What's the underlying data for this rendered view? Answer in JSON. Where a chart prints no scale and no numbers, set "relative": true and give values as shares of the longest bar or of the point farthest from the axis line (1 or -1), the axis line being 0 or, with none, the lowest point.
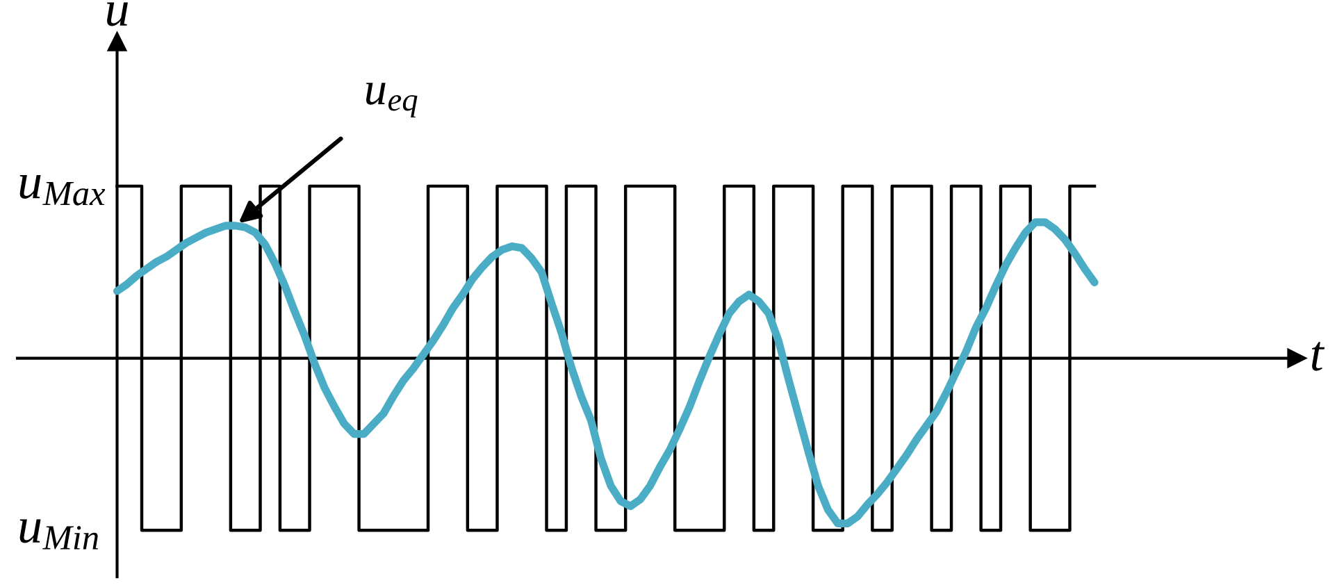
{
  "chart_data": {
    "type": "line",
    "xlabel": "t",
    "ylabel": "u",
    "categories": [
      null,
      null,
      null,
      null,
      null,
      null,
      null,
      null,
      null,
      null,
      null,
      null,
      null,
      null,
      null,
      null,
      null,
      null,
      null,
      null,
      null,
      null,
      null,
      null,
      null,
      null,
      null,
      null,
      null,
      null,
      null,
      null,
      null,
      null,
      null,
      null,
      null,
      null,
      null,
      null,
      null,
      null,
      null,
      null,
      null,
      null,
      null,
      null,
      null,
      null,
      null,
      null,
      null,
      null,
      null,
      null,
      null,
      null,
      null,
      null,
      null,
      null,
      null,
      null,
      null,
      null,
      null,
      null,
      null,
      null,
      null,
      null,
      null,
      null,
      null,
      null,
      null,
      null,
      null,
      null,
      null,
      null,
      null,
      null,
      null,
      null,
      null,
      null,
      null,
      null,
      null,
      null,
      null,
      null,
      null,
      null,
      null,
      null,
      null,
      null
    ],
    "relative": true,
    "series": [
      {
        "type": "step",
        "color": "#000000",
        "values": [
          1,
          1,
          1,
          -1,
          -1,
          -1,
          -1,
          1,
          1,
          1,
          1,
          1,
          -1,
          -1,
          -1,
          1,
          1,
          -1,
          -1,
          -1,
          1,
          1,
          1,
          1,
          1,
          -1,
          -1,
          -1,
          -1,
          -1,
          -1,
          -1,
          1,
          1,
          1,
          1,
          -1,
          -1,
          -1,
          1,
          1,
          1,
          1,
          1,
          -1,
          -1,
          1,
          1,
          1,
          -1,
          -1,
          -1,
          1,
          1,
          1,
          1,
          1,
          -1,
          -1,
          -1,
          -1,
          -1,
          1,
          1,
          1,
          -1,
          -1,
          1,
          1,
          1,
          1,
          -1,
          -1,
          -1,
          1,
          1,
          1,
          -1,
          -1,
          1,
          1,
          1,
          1,
          -1,
          -1,
          1,
          1,
          1,
          -1,
          -1,
          1,
          1,
          1,
          -1,
          -1,
          -1,
          -1,
          1,
          1,
          1
        ]
      },
      {
        "color": "#4bacc6",
        "values": [
          0.39,
          0.43,
          0.48,
          0.52,
          0.56,
          0.59,
          0.63,
          0.67,
          0.7,
          0.73,
          0.75,
          0.77,
          0.77,
          0.76,
          0.73,
          0.66,
          0.55,
          0.42,
          0.27,
          0.13,
          -0.03,
          -0.17,
          -0.28,
          -0.38,
          -0.44,
          -0.44,
          -0.38,
          -0.32,
          -0.22,
          -0.13,
          -0.06,
          0.02,
          0.1,
          0.19,
          0.29,
          0.37,
          0.46,
          0.53,
          0.59,
          0.63,
          0.65,
          0.64,
          0.58,
          0.5,
          0.32,
          0.15,
          -0.05,
          -0.22,
          -0.36,
          -0.58,
          -0.74,
          -0.83,
          -0.86,
          -0.82,
          -0.74,
          -0.63,
          -0.53,
          -0.41,
          -0.28,
          -0.13,
          0.01,
          0.14,
          0.26,
          0.33,
          0.37,
          0.33,
          0.26,
          0.1,
          -0.12,
          -0.33,
          -0.54,
          -0.74,
          -0.88,
          -0.96,
          -0.96,
          -0.92,
          -0.85,
          -0.79,
          -0.72,
          -0.64,
          -0.56,
          -0.47,
          -0.39,
          -0.31,
          -0.2,
          -0.08,
          0.04,
          0.18,
          0.29,
          0.42,
          0.54,
          0.64,
          0.73,
          0.79,
          0.79,
          0.75,
          0.69,
          0.61,
          0.52,
          0.44
        ]
      }
    ],
    "annotations": [
      "u$_{Max}$",
      "u$_{Min}$",
      "u$_{eq}$"
    ]
  }
}
